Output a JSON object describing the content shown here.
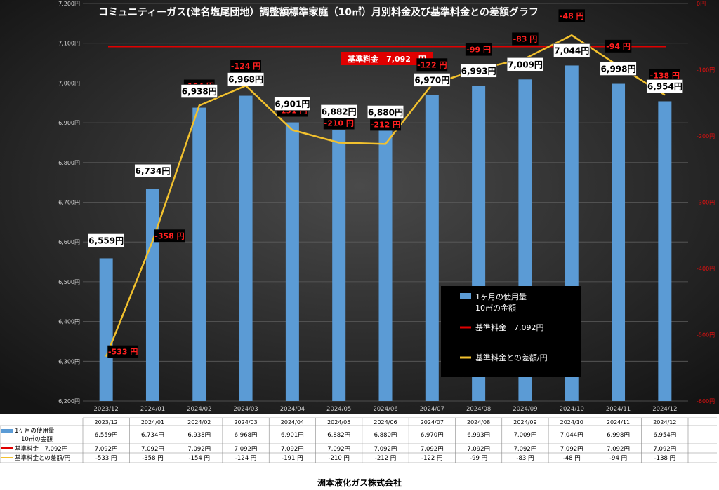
{
  "chart_data": {
    "type": "bar",
    "title": "コミュニティーガス(津名塩尾団地）調整額標準家庭（10㎥）月別料金及び基準料金との差額グラフ",
    "categories": [
      "2023/12",
      "2024/01",
      "2024/02",
      "2024/03",
      "2024/04",
      "2024/05",
      "2024/06",
      "2024/07",
      "2024/08",
      "2024/09",
      "2024/10",
      "2024/11",
      "2024/12"
    ],
    "y_left": {
      "min": 6200,
      "max": 7200,
      "step": 100,
      "tick_suffix": "円"
    },
    "y_right": {
      "min": -600,
      "max": 0,
      "step": 100,
      "tick_suffix": "円"
    },
    "grid": true,
    "series": [
      {
        "name": "1ヶ月の使用量\n10㎥の金額",
        "type": "bar",
        "axis": "left",
        "color": "#5b9bd5",
        "values": [
          6559,
          6734,
          6938,
          6968,
          6901,
          6882,
          6880,
          6970,
          6993,
          7009,
          7044,
          6998,
          6954
        ],
        "labels": [
          "6,559円",
          "6,734円",
          "6,938円",
          "6,968円",
          "6,901円",
          "6,882円",
          "6,880円",
          "6,970円",
          "6,993円",
          "7,009円",
          "7,044円",
          "6,998円",
          "6,954円"
        ]
      },
      {
        "name": "基準料金　7,092円",
        "type": "line",
        "axis": "left",
        "color": "#e00000",
        "values": [
          7092,
          7092,
          7092,
          7092,
          7092,
          7092,
          7092,
          7092,
          7092,
          7092,
          7092,
          7092,
          7092
        ],
        "labels": [
          "7,092円",
          "7,092円",
          "7,092円",
          "7,092円",
          "7,092円",
          "7,092円",
          "7,092円",
          "7,092円",
          "7,092円",
          "7,092円",
          "7,092円",
          "7,092円",
          "7,092円"
        ]
      },
      {
        "name": "基準料金との差額/円",
        "type": "line",
        "axis": "right",
        "color": "#f2c12e",
        "values": [
          -533,
          -358,
          -154,
          -124,
          -191,
          -210,
          -212,
          -122,
          -99,
          -83,
          -48,
          -94,
          -138
        ],
        "labels": [
          "-533 円",
          "-358 円",
          "-154 円",
          "-124 円",
          "-191 円",
          "-210 円",
          "-212 円",
          "-122 円",
          "-99 円",
          "-83 円",
          "-48 円",
          "-94 円",
          "-138 円"
        ],
        "table_labels": [
          "-533 円",
          "-358 円",
          "-154 円",
          "-124 円",
          "-191 円",
          "-210 円",
          "-212 円",
          "-122 円",
          "-99 円",
          "-83 円",
          "-48 円",
          "-94 円",
          "-138 円"
        ]
      }
    ],
    "baseline_label": "基準料金　7,092　円",
    "legend": {
      "placement": "inside-bottom-right",
      "entries": [
        "1ヶ月の使用量\n10㎥の金額",
        "基準料金　7,092円",
        "基準料金との差額/円"
      ]
    },
    "table_row_labels": [
      "1ヶ月の使用量\n10㎥の金額",
      "基準料金　7,092円",
      "基準料金との差額/円"
    ]
  },
  "footer": {
    "company": "洲本液化ガス株式会社"
  }
}
